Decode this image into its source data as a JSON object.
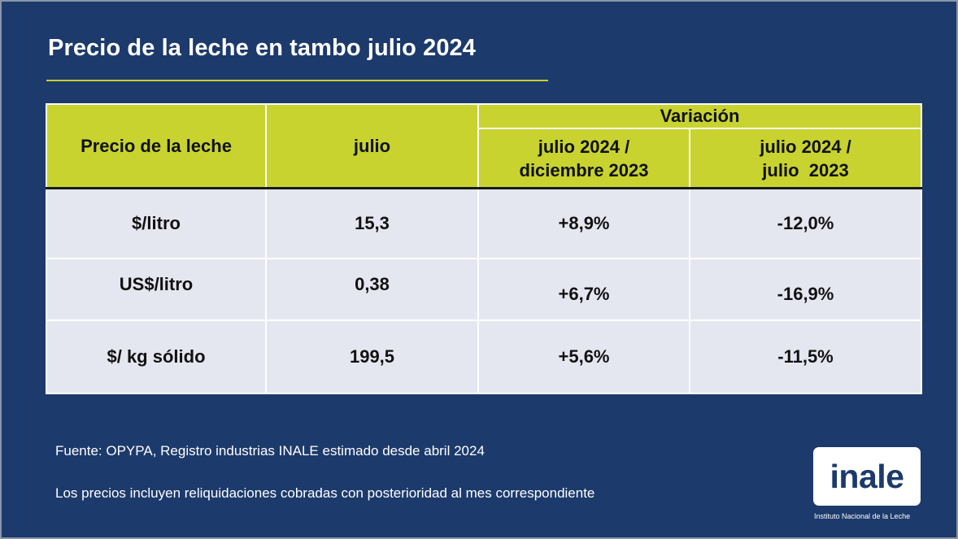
{
  "title": "Precio de la leche en tambo julio 2024",
  "colors": {
    "background": "#1c3a6b",
    "accent": "#c8d32f",
    "row_fill": "#e5e7f0",
    "text_light": "#ffffff"
  },
  "table": {
    "headers": {
      "col1": "Precio de la leche",
      "col2": "julio",
      "variation_group": "Variación",
      "variation_a": [
        "julio 2024 /",
        "diciembre 2023"
      ],
      "variation_b": [
        "julio 2024 /",
        "julio  2023"
      ]
    },
    "rows": [
      {
        "label": "$/litro",
        "julio": "15,3",
        "var_dic": "+8,9%",
        "var_jul": "-12,0%"
      },
      {
        "label": "US$/litro",
        "julio": "0,38",
        "var_dic": "+6,7%",
        "var_jul": "-16,9%"
      },
      {
        "label": "$/ kg sólido",
        "julio": "199,5",
        "var_dic": "+5,6%",
        "var_jul": "-11,5%"
      }
    ]
  },
  "footnotes": {
    "source": "Fuente: OPYPA, Registro industrias INALE estimado desde abril 2024",
    "note": "Los precios incluyen reliquidaciones cobradas con posterioridad al mes correspondiente"
  },
  "logo": {
    "text": "inale",
    "caption": "Instituto Nacional de la Leche"
  }
}
